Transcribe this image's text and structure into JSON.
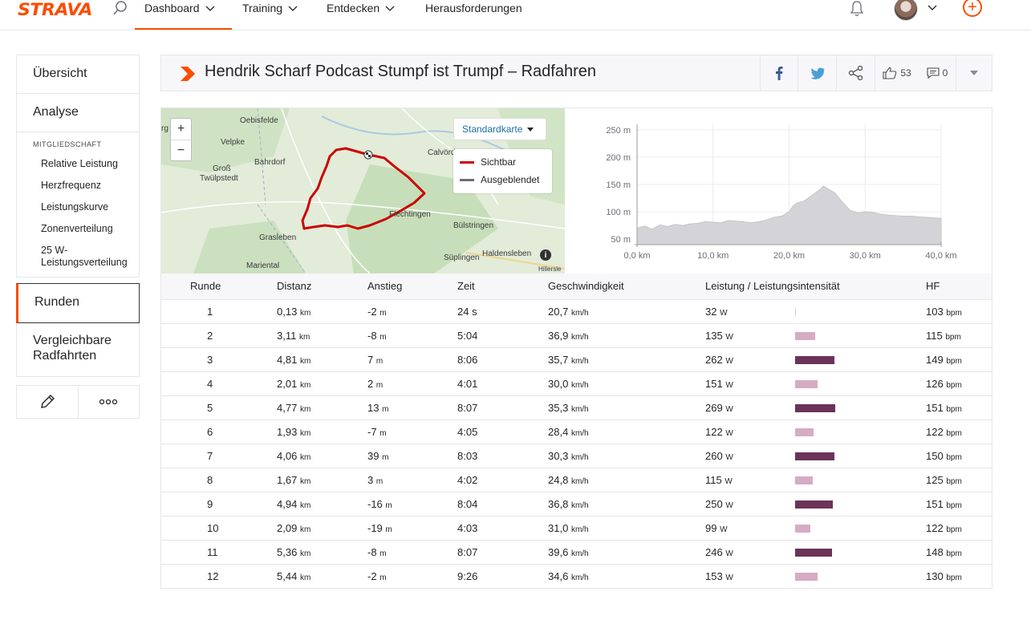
{
  "nav": {
    "logo": "STRAVA",
    "items": [
      {
        "label": "Dashboard"
      },
      {
        "label": "Training"
      },
      {
        "label": "Entdecken"
      },
      {
        "label": "Herausforderungen"
      }
    ],
    "accent": "#fc4c02"
  },
  "sidebar": {
    "uebersicht": "Übersicht",
    "analyse": "Analyse",
    "section": "MITGLIEDSCHAFT",
    "sub": [
      "Relative Leistung",
      "Herzfrequenz",
      "Leistungskurve",
      "Zonenverteilung",
      "25 W-",
      "Leistungsverteilung"
    ],
    "runden": "Runden",
    "vergleich_1": "Vergleichbare",
    "vergleich_2": "Radfahrten"
  },
  "header": {
    "title": "Hendrik Scharf Podcast Stumpf ist Trumpf – Radfahren",
    "kudos": "53",
    "comments": "0"
  },
  "map": {
    "style_button": "Standardkarte",
    "legend_visible": "Sichtbar",
    "legend_hidden": "Ausgeblendet",
    "visible_color": "#cc0000",
    "hidden_color": "#6b6b7b",
    "places": [
      "rg",
      "Oebisfelde",
      "Velpke",
      "Bahrdorf",
      "Groß",
      "Twülpstedt",
      "Calvörd",
      "Flechtingen",
      "Bülstringen",
      "Grasleben",
      "Mariental",
      "Süplingen",
      "Haldensleben",
      "Hillersle"
    ],
    "zoom_in": "+",
    "zoom_out": "−"
  },
  "chart_data": {
    "type": "area",
    "ylabel": "",
    "xlabel": "",
    "y_ticks": [
      "250 m",
      "200 m",
      "150 m",
      "100 m",
      "50 m"
    ],
    "x_ticks": [
      "0,0 km",
      "10,0 km",
      "20,0 km",
      "30,0 km",
      "40,0 km"
    ],
    "xlim": [
      0,
      40
    ],
    "ylim": [
      40,
      260
    ],
    "x": [
      0,
      1,
      2,
      3,
      4,
      5,
      6,
      7,
      8,
      9,
      10,
      11,
      12,
      13,
      14,
      15,
      16,
      17,
      18,
      19,
      20,
      20.5,
      21,
      22,
      23,
      24,
      24.5,
      25,
      26,
      27,
      28,
      29,
      30,
      31,
      32,
      33,
      34,
      35,
      36,
      37,
      38,
      39,
      40
    ],
    "y": [
      70,
      74,
      68,
      76,
      73,
      77,
      75,
      78,
      79,
      82,
      81,
      80,
      84,
      83,
      82,
      80,
      82,
      85,
      90,
      92,
      100,
      110,
      116,
      120,
      130,
      140,
      147,
      143,
      135,
      118,
      103,
      98,
      100,
      99,
      96,
      94,
      93,
      92,
      92,
      91,
      90,
      89,
      88
    ]
  },
  "table": {
    "headers": [
      "Runde",
      "Distanz",
      "Anstieg",
      "Zeit",
      "Geschwindigkeit",
      "Leistung / Leistungsintensität",
      "HF"
    ],
    "units": {
      "dist": "km",
      "elev": "m",
      "speed": "km/h",
      "power": "W",
      "hr": "bpm"
    },
    "rows": [
      {
        "lap": "1",
        "dist": "0,13",
        "elev": "-2",
        "time": "24 s",
        "speed": "20,7",
        "power": "32",
        "hr": "103",
        "intensity": 0.12
      },
      {
        "lap": "2",
        "dist": "3,11",
        "elev": "-8",
        "time": "5:04",
        "speed": "36,9",
        "power": "135",
        "hr": "115",
        "intensity": 0.5
      },
      {
        "lap": "3",
        "dist": "4,81",
        "elev": "7",
        "time": "8:06",
        "speed": "35,7",
        "power": "262",
        "hr": "149",
        "intensity": 0.97
      },
      {
        "lap": "4",
        "dist": "2,01",
        "elev": "2",
        "time": "4:01",
        "speed": "30,0",
        "power": "151",
        "hr": "126",
        "intensity": 0.56
      },
      {
        "lap": "5",
        "dist": "4,77",
        "elev": "13",
        "time": "8:07",
        "speed": "35,3",
        "power": "269",
        "hr": "151",
        "intensity": 1.0
      },
      {
        "lap": "6",
        "dist": "1,93",
        "elev": "-7",
        "time": "4:05",
        "speed": "28,4",
        "power": "122",
        "hr": "122",
        "intensity": 0.45
      },
      {
        "lap": "7",
        "dist": "4,06",
        "elev": "39",
        "time": "8:03",
        "speed": "30,3",
        "power": "260",
        "hr": "150",
        "intensity": 0.97
      },
      {
        "lap": "8",
        "dist": "1,67",
        "elev": "3",
        "time": "4:02",
        "speed": "24,8",
        "power": "115",
        "hr": "125",
        "intensity": 0.43
      },
      {
        "lap": "9",
        "dist": "4,94",
        "elev": "-16",
        "time": "8:04",
        "speed": "36,8",
        "power": "250",
        "hr": "151",
        "intensity": 0.93
      },
      {
        "lap": "10",
        "dist": "2,09",
        "elev": "-19",
        "time": "4:03",
        "speed": "31,0",
        "power": "99",
        "hr": "122",
        "intensity": 0.37
      },
      {
        "lap": "11",
        "dist": "5,36",
        "elev": "-8",
        "time": "8:07",
        "speed": "39,6",
        "power": "246",
        "hr": "148",
        "intensity": 0.91
      },
      {
        "lap": "12",
        "dist": "5,44",
        "elev": "-2",
        "time": "9:26",
        "speed": "34,6",
        "power": "153",
        "hr": "130",
        "intensity": 0.57
      }
    ]
  }
}
